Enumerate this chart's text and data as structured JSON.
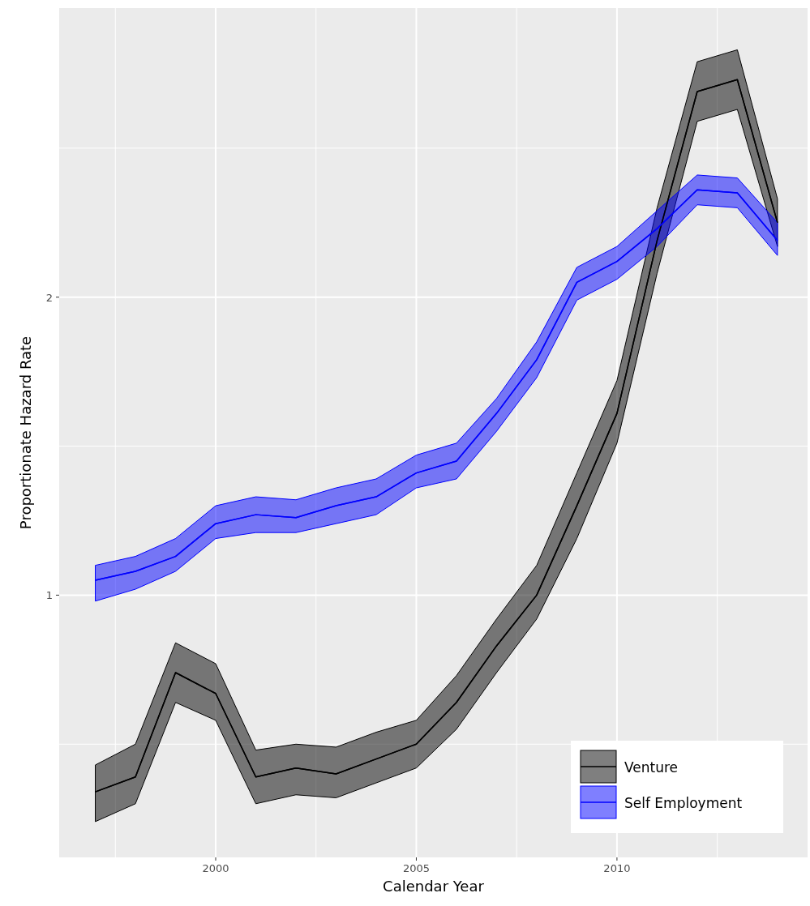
{
  "chart_data": {
    "type": "line",
    "xlabel": "Calendar Year",
    "ylabel": "Proportionate Hazard Rate",
    "x": [
      1997,
      1998,
      1999,
      2000,
      2001,
      2002,
      2003,
      2004,
      2005,
      2006,
      2007,
      2008,
      2009,
      2010,
      2011,
      2012,
      2013,
      2014
    ],
    "xlim": [
      1996.1,
      2014.75
    ],
    "xticks": [
      {
        "value": 1997.5,
        "label": null
      },
      2000,
      {
        "value": 2002.5,
        "label": null
      },
      2005,
      {
        "value": 2007.5,
        "label": null
      },
      2010,
      {
        "value": 2012.5,
        "label": null
      }
    ],
    "ylim": [
      0.12,
      2.97
    ],
    "yticks": [
      {
        "value": 0.5,
        "label": null
      },
      1,
      {
        "value": 1.5,
        "label": null
      },
      2,
      {
        "value": 2.5,
        "label": null
      }
    ],
    "grid": true,
    "legend": "bottom right",
    "line_style": "solid",
    "marker": "none",
    "series": [
      {
        "name": "Venture",
        "color": "#000000",
        "values": [
          0.34,
          0.39,
          0.74,
          0.67,
          0.39,
          0.42,
          0.4,
          0.45,
          0.5,
          0.64,
          0.83,
          1.0,
          1.3,
          1.61,
          2.19,
          2.69,
          2.73,
          2.25
        ],
        "lower": [
          0.24,
          0.3,
          0.64,
          0.58,
          0.3,
          0.33,
          0.32,
          0.37,
          0.42,
          0.55,
          0.74,
          0.92,
          1.19,
          1.51,
          2.08,
          2.59,
          2.63,
          2.17
        ],
        "upper": [
          0.43,
          0.5,
          0.84,
          0.77,
          0.48,
          0.5,
          0.49,
          0.54,
          0.58,
          0.73,
          0.92,
          1.1,
          1.41,
          1.72,
          2.3,
          2.79,
          2.83,
          2.33
        ]
      },
      {
        "name": "Self Employment",
        "color": "#0000ff",
        "values": [
          1.05,
          1.08,
          1.13,
          1.24,
          1.27,
          1.26,
          1.3,
          1.33,
          1.41,
          1.45,
          1.61,
          1.79,
          2.05,
          2.12,
          2.23,
          2.36,
          2.35,
          2.19
        ],
        "lower": [
          0.98,
          1.02,
          1.08,
          1.19,
          1.21,
          1.21,
          1.24,
          1.27,
          1.36,
          1.39,
          1.55,
          1.73,
          1.99,
          2.06,
          2.17,
          2.31,
          2.3,
          2.14
        ],
        "upper": [
          1.1,
          1.13,
          1.19,
          1.3,
          1.33,
          1.32,
          1.36,
          1.39,
          1.47,
          1.51,
          1.66,
          1.85,
          2.1,
          2.17,
          2.29,
          2.41,
          2.4,
          2.25
        ]
      }
    ]
  }
}
